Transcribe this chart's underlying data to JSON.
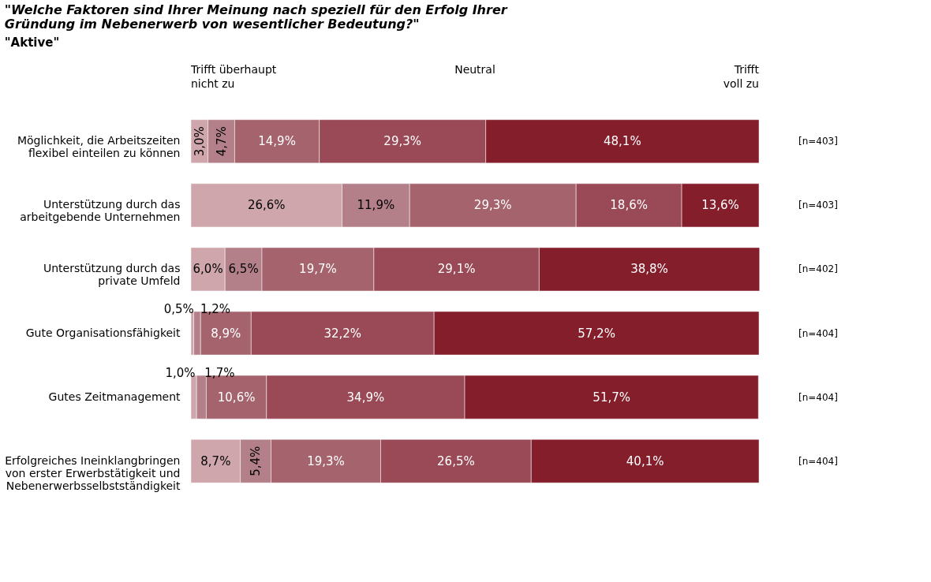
{
  "chart_data": {
    "type": "bar",
    "orientation": "horizontal",
    "stacked": true,
    "title": "\"Welche Faktoren sind Ihrer Meinung nach speziell für den Erfolg Ihrer\nGründung im Nebenerwerb von wesentlicher Bedeutung?\"",
    "subtitle": "\"Aktive\"",
    "categories": [
      "Möglichkeit, die Arbeitszeiten\nflexibel einteilen zu können",
      "Unterstützung durch das\narbeitgebende Unternehmen",
      "Unterstützung durch das\nprivate Umfeld",
      "Gute Organisationsfähigkeit",
      "Gutes Zeitmanagement",
      "Erfolgreiches Ineinklangbringen\nvon erster Erwerbstätigkeit und\nNebenerwerbsselbstständigkeit"
    ],
    "series": [
      {
        "color": "#cfa6ab",
        "values": [
          3.0,
          26.6,
          6.0,
          0.5,
          1.0,
          8.7
        ],
        "value_labels": [
          "3,0%",
          "26,6%",
          "6,0%",
          "0,5%",
          "1,0%",
          "8,7%"
        ]
      },
      {
        "color": "#b3808a",
        "values": [
          4.7,
          11.9,
          6.5,
          1.2,
          1.7,
          5.4
        ],
        "value_labels": [
          "4,7%",
          "11,9%",
          "6,5%",
          "1,2%",
          "1,7%",
          "5,4%"
        ]
      },
      {
        "color": "#a5646d",
        "values": [
          14.9,
          29.3,
          19.7,
          8.9,
          10.6,
          19.3
        ],
        "value_labels": [
          "14,9%",
          "29,3%",
          "19,7%",
          "8,9%",
          "10,6%",
          "19,3%"
        ]
      },
      {
        "color": "#9a4a56",
        "values": [
          29.3,
          18.6,
          29.1,
          32.2,
          34.9,
          26.5
        ],
        "value_labels": [
          "29,3%",
          "18,6%",
          "29,1%",
          "32,2%",
          "34,9%",
          "26,5%"
        ]
      },
      {
        "color": "#841e2b",
        "values": [
          48.1,
          13.6,
          38.8,
          57.2,
          51.7,
          40.1
        ],
        "value_labels": [
          "48,1%",
          "13,6%",
          "38,8%",
          "57,2%",
          "51,7%",
          "40,1%"
        ]
      }
    ],
    "xlim": [
      0,
      100
    ],
    "tick_labels": "y",
    "annotations": [
      "Trifft überhaupt\nnicht zu",
      "Neutral",
      "Trifft\nvoll zu",
      "[n=403]",
      "[n=403]",
      "[n=402]",
      "[n=404]",
      "[n=404]",
      "[n=404]"
    ]
  }
}
